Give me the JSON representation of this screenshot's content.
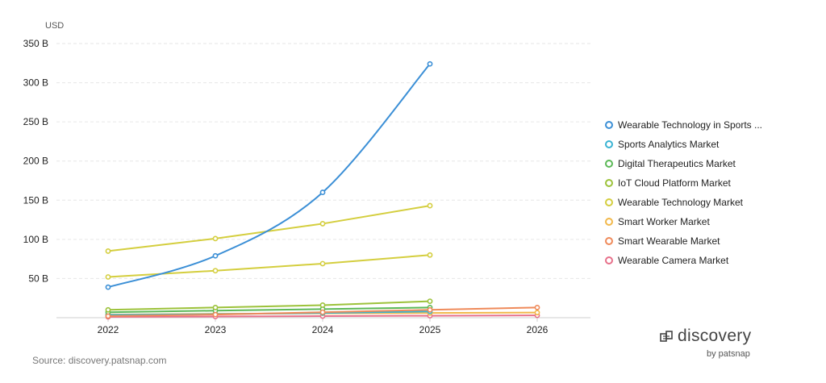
{
  "chart_data": {
    "type": "line",
    "unit_label": "USD",
    "categories": [
      "2022",
      "2023",
      "2024",
      "2025",
      "2026"
    ],
    "ylim": [
      0,
      350
    ],
    "yticks": [
      {
        "value": 50,
        "label": "50 B"
      },
      {
        "value": 100,
        "label": "100 B"
      },
      {
        "value": 150,
        "label": "150 B"
      },
      {
        "value": 200,
        "label": "200 B"
      },
      {
        "value": 250,
        "label": "250 B"
      },
      {
        "value": 300,
        "label": "300 B"
      },
      {
        "value": 350,
        "label": "350 B"
      }
    ],
    "grid": true,
    "legend_position": "right",
    "series": [
      {
        "name": "Wearable Technology in Sports ...",
        "color": "#3b8fd6",
        "smooth": true,
        "values": [
          39,
          79,
          160,
          324,
          null
        ]
      },
      {
        "name": "Sports Analytics Market",
        "color": "#39b3d3",
        "values": [
          3.5,
          4.5,
          6,
          8,
          null
        ]
      },
      {
        "name": "Digital Therapeutics Market",
        "color": "#5bb857",
        "values": [
          7,
          9,
          11,
          13,
          null
        ]
      },
      {
        "name": "IoT Cloud Platform Market",
        "color": "#9cc23a",
        "values": [
          10,
          13,
          16,
          21,
          null
        ]
      },
      {
        "name": "Wearable Technology Market",
        "color": "#d4ce3e",
        "values": [
          85,
          101,
          120,
          143,
          null
        ]
      },
      {
        "name": "Wearable Technology Market",
        "color": "#d4ce3e",
        "values": [
          52,
          60,
          69,
          80,
          null
        ]
      },
      {
        "name": "Smart Worker Market",
        "color": "#f2b84a",
        "values": [
          4,
          5,
          5.5,
          6,
          6.5
        ]
      },
      {
        "name": "Smart Wearable Market",
        "color": "#ef8a5a",
        "values": [
          2,
          4,
          7,
          10,
          13
        ]
      },
      {
        "name": "Wearable Camera Market",
        "color": "#e7708a",
        "values": [
          1,
          1.5,
          2,
          2.5,
          3
        ]
      }
    ],
    "legend": [
      {
        "label": "Wearable Technology in Sports ...",
        "color": "#3b8fd6"
      },
      {
        "label": "Sports Analytics Market",
        "color": "#39b3d3"
      },
      {
        "label": "Digital Therapeutics Market",
        "color": "#5bb857"
      },
      {
        "label": "IoT Cloud Platform Market",
        "color": "#9cc23a"
      },
      {
        "label": "Wearable Technology Market",
        "color": "#d4ce3e"
      },
      {
        "label": "Smart Worker Market",
        "color": "#f2b84a"
      },
      {
        "label": "Smart Wearable Market",
        "color": "#ef8a5a"
      },
      {
        "label": "Wearable Camera Market",
        "color": "#e7708a"
      }
    ]
  },
  "source_text": "Source: discovery.patsnap.com",
  "brand": {
    "name": "discovery",
    "sub": "by patsnap"
  }
}
